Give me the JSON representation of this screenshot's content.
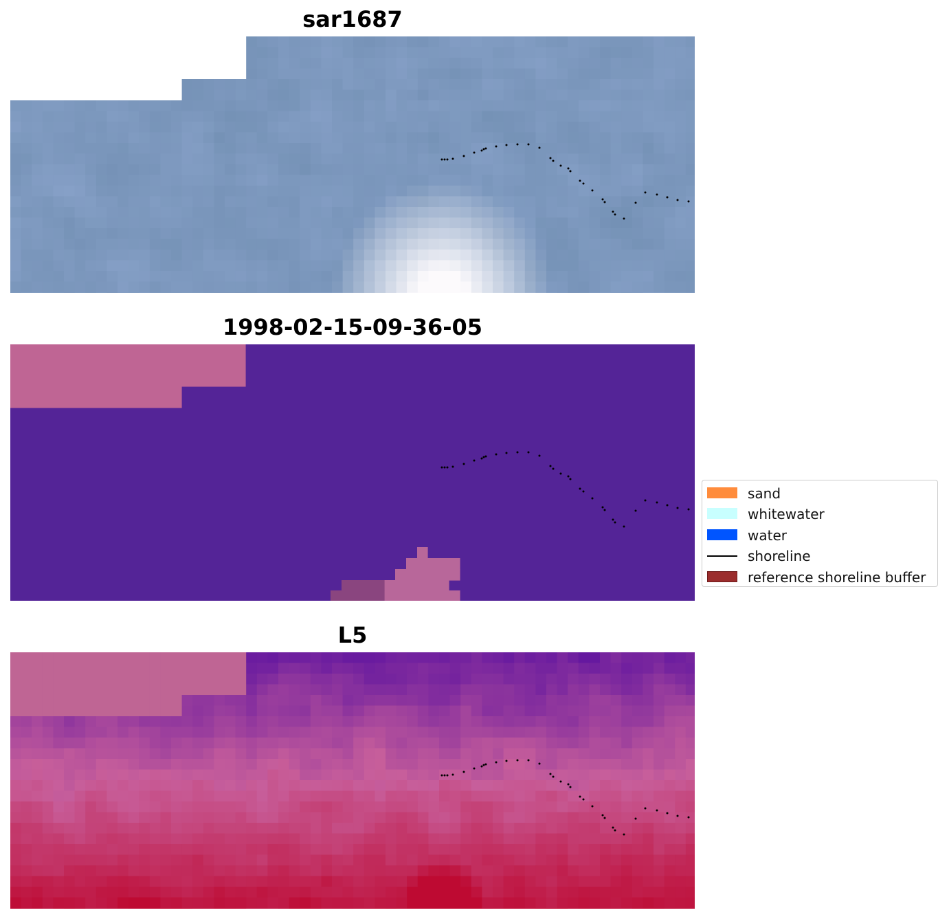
{
  "panels": [
    {
      "title": "sar1687",
      "kind": "rgb"
    },
    {
      "title": "1998-02-15-09-36-05",
      "kind": "classification"
    },
    {
      "title": "L5",
      "kind": "index"
    }
  ],
  "legend": {
    "items": [
      {
        "label": "sand",
        "color": "#ff8c3c"
      },
      {
        "label": "whitewater",
        "color": "#c8ffff"
      },
      {
        "label": "water",
        "color": "#0055ff"
      },
      {
        "label": "shoreline",
        "color": "#000000"
      },
      {
        "label": "reference shoreline buffer",
        "color": "#9b2d2d"
      }
    ]
  },
  "colors": {
    "nodata": "#bf6594",
    "water_class": "#542497",
    "shoreline": "#000000"
  }
}
